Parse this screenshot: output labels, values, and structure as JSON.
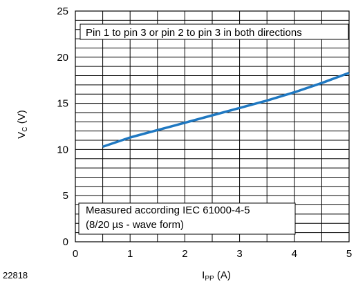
{
  "figure_code": "22818",
  "chart_data": {
    "type": "line",
    "xlabel": {
      "main": "I",
      "sub": "PP",
      "unit": " (A)"
    },
    "ylabel": {
      "main": "V",
      "sub": "C",
      "unit": " (V)"
    },
    "xlim": [
      0,
      5
    ],
    "ylim": [
      0,
      25
    ],
    "x_ticks": [
      0,
      1,
      2,
      3,
      4,
      5
    ],
    "y_ticks": [
      0,
      5,
      10,
      15,
      20,
      25
    ],
    "x_tick_labels": [
      "0",
      "1",
      "2",
      "3",
      "4",
      "5"
    ],
    "y_tick_labels": [
      "0",
      "5",
      "10",
      "15",
      "20",
      "25"
    ],
    "grid": {
      "x_minor_step": 0.5,
      "y_minor_step": 1,
      "y_major_step": 5
    },
    "line_color": "#1f78c1",
    "series": [
      {
        "x": [
          0.5,
          1.0,
          1.5,
          2.0,
          2.5,
          3.0,
          3.5,
          4.0,
          4.5,
          5.0
        ],
        "y": [
          10.3,
          11.3,
          12.1,
          12.9,
          13.7,
          14.5,
          15.3,
          16.2,
          17.2,
          18.3
        ]
      }
    ],
    "annotations": [
      {
        "text": "Pin 1 to pin 3 or pin 2 to pin 3 in both directions"
      },
      {
        "text": "Measured according IEC 61000-4-5"
      },
      {
        "text": "(8/20 µs - wave form)"
      }
    ]
  }
}
